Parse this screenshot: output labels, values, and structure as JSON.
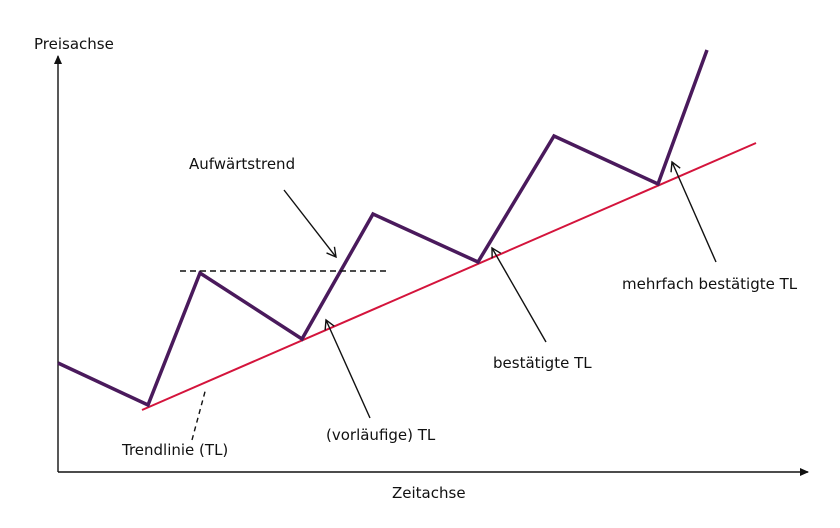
{
  "axes": {
    "y_label": "Preisachse",
    "x_label": "Zeitachse"
  },
  "labels": {
    "uptrend": "Aufwärtstrend",
    "trendline": "Trendlinie (TL)",
    "tentative_tl": "(vorläufige) TL",
    "confirmed_tl": "bestätigte TL",
    "multi_confirmed_tl": "mehrfach bestätigte TL"
  },
  "colors": {
    "price_line": "#4a1a5c",
    "trend_line": "#d4143c",
    "axis": "#111111",
    "text": "#111111"
  }
}
